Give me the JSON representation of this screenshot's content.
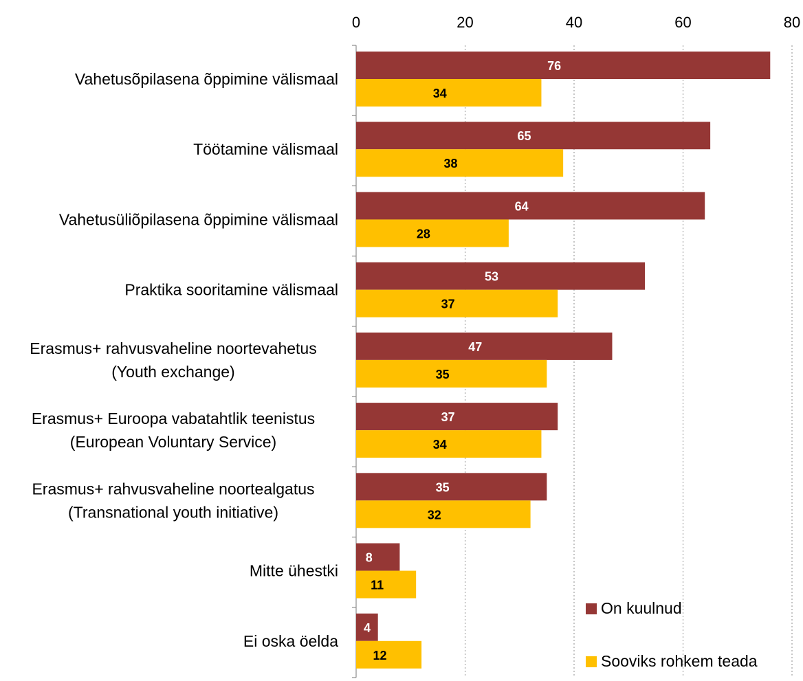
{
  "chart_data": {
    "type": "bar",
    "orientation": "horizontal",
    "title": "",
    "xlabel": "",
    "ylabel": "",
    "xlim": [
      0,
      80
    ],
    "ticks": [
      "0",
      "20",
      "40",
      "60",
      "80"
    ],
    "tick_values": [
      0,
      20,
      40,
      60,
      80
    ],
    "grid": "vertical-dotted",
    "legend_position": "bottom-right",
    "categories": [
      [
        "Vahetusõpilasena õppimine välismaal"
      ],
      [
        "Töötamine välismaal"
      ],
      [
        "Vahetusüliõpilasena õppimine välismaal"
      ],
      [
        "Praktika sooritamine välismaal"
      ],
      [
        "Erasmus+ rahvusvaheline noortevahetus",
        "(Youth exchange)"
      ],
      [
        "Erasmus+ Euroopa vabatahtlik teenistus",
        "(European Voluntary Service)"
      ],
      [
        "Erasmus+ rahvusvaheline noortealgatus",
        "(Transnational youth initiative)"
      ],
      [
        "Mitte ühestki"
      ],
      [
        "Ei oska öelda"
      ]
    ],
    "series": [
      {
        "name": "On kuulnud",
        "color": "#953735",
        "label_color": "#ffffff",
        "values": [
          76,
          65,
          64,
          53,
          47,
          37,
          35,
          8,
          4
        ]
      },
      {
        "name": "Sooviks rohkem teada",
        "color": "#ffc000",
        "label_color": "#000000",
        "values": [
          34,
          38,
          28,
          37,
          35,
          34,
          32,
          11,
          12
        ]
      }
    ]
  }
}
